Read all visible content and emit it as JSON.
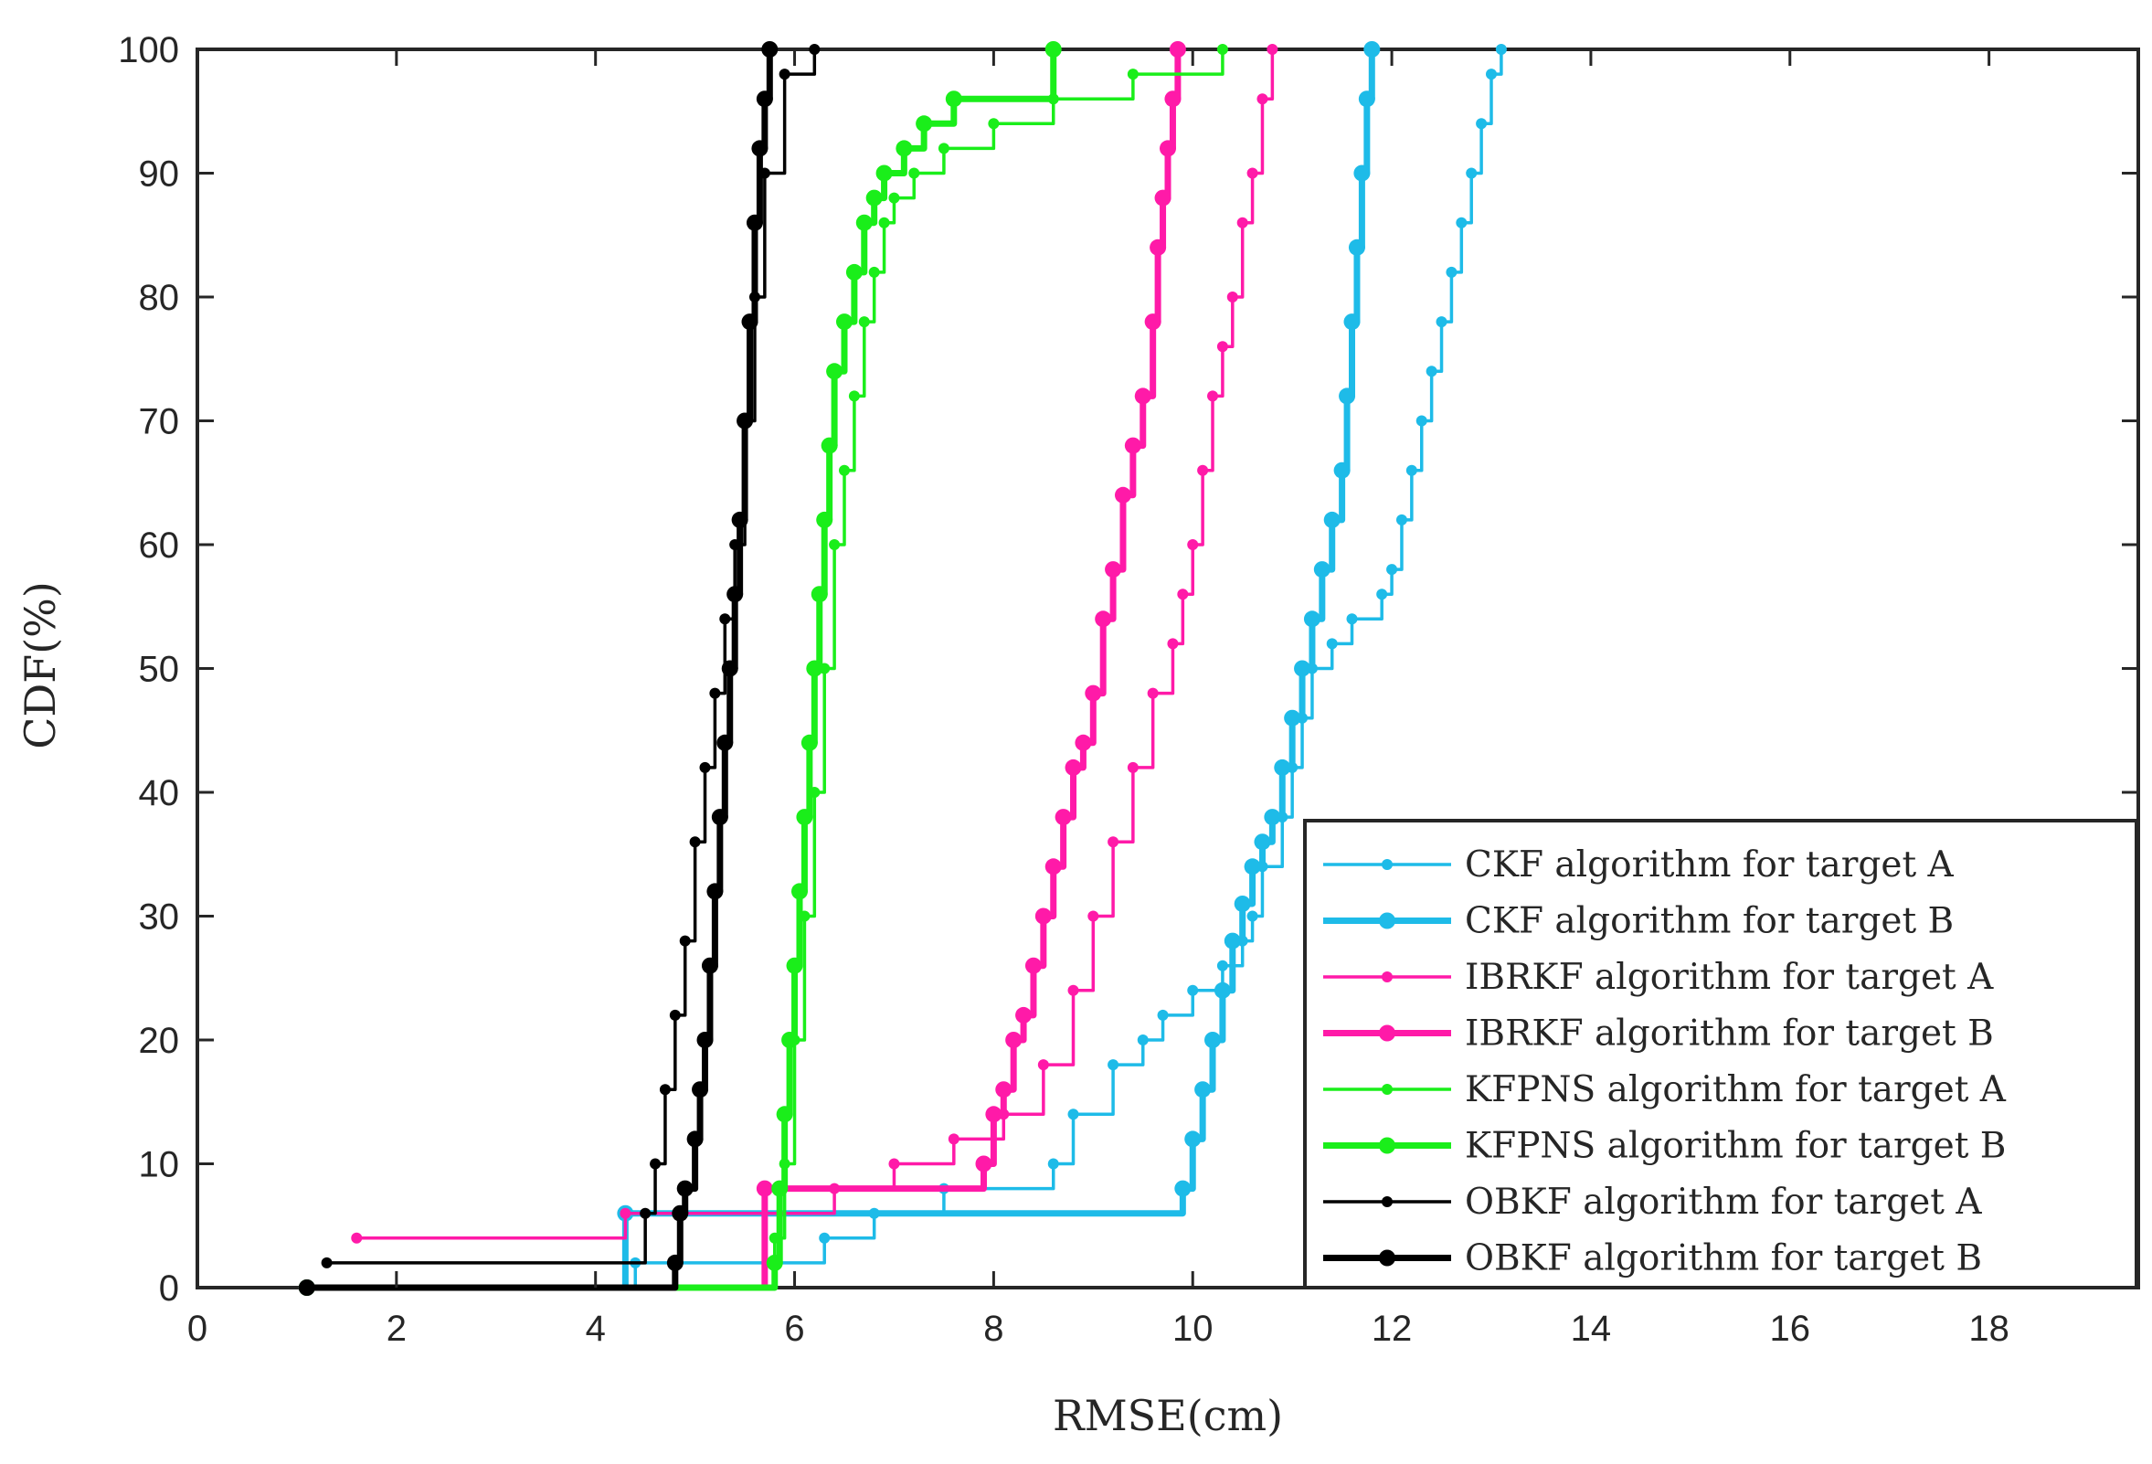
{
  "chart_data": {
    "type": "line",
    "title": "",
    "xlabel": "RMSE(cm)",
    "ylabel": "CDF(%)",
    "xlim": [
      0,
      19.5
    ],
    "ylim": [
      0,
      100
    ],
    "xticks": [
      0,
      2,
      4,
      6,
      8,
      10,
      12,
      14,
      16,
      18
    ],
    "yticks": [
      0,
      10,
      20,
      30,
      40,
      50,
      60,
      70,
      80,
      90,
      100
    ],
    "xtick_labels": [
      "0",
      "2",
      "4",
      "6",
      "8",
      "10",
      "12",
      "14",
      "16",
      "18"
    ],
    "ytick_labels": [
      "0",
      "10",
      "20",
      "30",
      "40",
      "50",
      "60",
      "70",
      "80",
      "90",
      "100"
    ],
    "grid": false,
    "legend_position": "bottom-right",
    "series": [
      {
        "name": "CKF algorithm for target A",
        "color": "#1ebbe8",
        "weight": "thin",
        "x": [
          1.1,
          4.4,
          6.3,
          6.8,
          7.5,
          8.6,
          8.8,
          9.2,
          9.5,
          9.7,
          10.0,
          10.3,
          10.5,
          10.6,
          10.7,
          10.9,
          11.0,
          11.1,
          11.2,
          11.4,
          11.6,
          11.9,
          12.0,
          12.1,
          12.2,
          12.3,
          12.4,
          12.5,
          12.6,
          12.7,
          12.8,
          12.9,
          13.0,
          13.1
        ],
        "y": [
          0,
          2,
          4,
          6,
          8,
          10,
          14,
          18,
          20,
          22,
          24,
          26,
          28,
          30,
          34,
          38,
          42,
          46,
          50,
          52,
          54,
          56,
          58,
          62,
          66,
          70,
          74,
          78,
          82,
          86,
          90,
          94,
          98,
          100
        ]
      },
      {
        "name": "CKF algorithm for target B",
        "color": "#1ebbe8",
        "weight": "thick",
        "x": [
          1.1,
          4.3,
          9.9,
          10.0,
          10.1,
          10.2,
          10.3,
          10.4,
          10.5,
          10.6,
          10.7,
          10.8,
          10.9,
          11.0,
          11.1,
          11.2,
          11.3,
          11.4,
          11.5,
          11.55,
          11.6,
          11.65,
          11.7,
          11.75,
          11.8
        ],
        "y": [
          0,
          6,
          8,
          12,
          16,
          20,
          24,
          28,
          31,
          34,
          36,
          38,
          42,
          46,
          50,
          54,
          58,
          62,
          66,
          72,
          78,
          84,
          90,
          96,
          100
        ]
      },
      {
        "name": "IBRKF algorithm for target A",
        "color": "#ff1aa8",
        "weight": "thin",
        "x": [
          1.6,
          4.3,
          6.4,
          7.0,
          7.6,
          8.1,
          8.5,
          8.8,
          9.0,
          9.2,
          9.4,
          9.6,
          9.8,
          9.9,
          10.0,
          10.1,
          10.2,
          10.3,
          10.4,
          10.5,
          10.6,
          10.7,
          10.8
        ],
        "y": [
          4,
          6,
          8,
          10,
          12,
          14,
          18,
          24,
          30,
          36,
          42,
          48,
          52,
          56,
          60,
          66,
          72,
          76,
          80,
          86,
          90,
          96,
          100
        ]
      },
      {
        "name": "IBRKF algorithm for target B",
        "color": "#ff1aa8",
        "weight": "thick",
        "x": [
          1.1,
          5.7,
          7.9,
          8.0,
          8.1,
          8.2,
          8.3,
          8.4,
          8.5,
          8.6,
          8.7,
          8.8,
          8.9,
          9.0,
          9.1,
          9.2,
          9.3,
          9.4,
          9.5,
          9.6,
          9.65,
          9.7,
          9.75,
          9.8,
          9.85
        ],
        "y": [
          0,
          8,
          10,
          14,
          16,
          20,
          22,
          26,
          30,
          34,
          38,
          42,
          44,
          48,
          54,
          58,
          64,
          68,
          72,
          78,
          84,
          88,
          92,
          96,
          100
        ]
      },
      {
        "name": "KFPNS algorithm for target A",
        "color": "#1aee1a",
        "weight": "thin",
        "x": [
          1.1,
          5.8,
          5.9,
          6.0,
          6.1,
          6.2,
          6.3,
          6.4,
          6.5,
          6.6,
          6.7,
          6.8,
          6.9,
          7.0,
          7.2,
          7.5,
          8.0,
          8.6,
          9.4,
          10.3
        ],
        "y": [
          0,
          4,
          10,
          20,
          30,
          40,
          50,
          60,
          66,
          72,
          78,
          82,
          86,
          88,
          90,
          92,
          94,
          96,
          98,
          100
        ]
      },
      {
        "name": "KFPNS algorithm for target B",
        "color": "#1aee1a",
        "weight": "thick",
        "x": [
          1.1,
          5.8,
          5.85,
          5.9,
          5.95,
          6.0,
          6.05,
          6.1,
          6.15,
          6.2,
          6.25,
          6.3,
          6.35,
          6.4,
          6.5,
          6.6,
          6.7,
          6.8,
          6.9,
          7.1,
          7.3,
          7.6,
          8.6
        ],
        "y": [
          0,
          2,
          8,
          14,
          20,
          26,
          32,
          38,
          44,
          50,
          56,
          62,
          68,
          74,
          78,
          82,
          86,
          88,
          90,
          92,
          94,
          96,
          100
        ]
      },
      {
        "name": "OBKF algorithm for target A",
        "color": "#000000",
        "weight": "thin",
        "x": [
          1.3,
          4.5,
          4.6,
          4.7,
          4.8,
          4.9,
          5.0,
          5.1,
          5.2,
          5.3,
          5.4,
          5.5,
          5.6,
          5.7,
          5.9,
          6.2
        ],
        "y": [
          2,
          6,
          10,
          16,
          22,
          28,
          36,
          42,
          48,
          54,
          60,
          70,
          80,
          90,
          98,
          100
        ]
      },
      {
        "name": "OBKF algorithm for target B",
        "color": "#000000",
        "weight": "thick",
        "x": [
          1.1,
          4.8,
          4.85,
          4.9,
          5.0,
          5.05,
          5.1,
          5.15,
          5.2,
          5.25,
          5.3,
          5.35,
          5.4,
          5.45,
          5.5,
          5.55,
          5.6,
          5.65,
          5.7,
          5.75
        ],
        "y": [
          0,
          2,
          6,
          8,
          12,
          16,
          20,
          26,
          32,
          38,
          44,
          50,
          56,
          62,
          70,
          78,
          86,
          92,
          96,
          100
        ]
      }
    ]
  }
}
